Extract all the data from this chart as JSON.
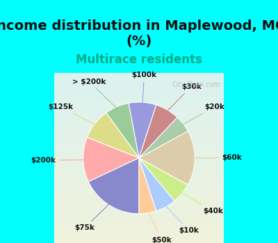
{
  "title": "Income distribution in Maplewood, MO\n(%)",
  "subtitle": "Multirace residents",
  "labels": [
    "$100k",
    "> $200k",
    "$125k",
    "$200k",
    "$75k",
    "$50k",
    "$10k",
    "$40k",
    "$60k",
    "$20k",
    "$30k"
  ],
  "sizes": [
    8,
    7,
    9,
    13,
    18,
    5,
    6,
    6,
    16,
    5,
    7
  ],
  "colors": [
    "#9999dd",
    "#99cc99",
    "#dddd88",
    "#ffaaaa",
    "#8888cc",
    "#ffcc99",
    "#aaccff",
    "#ccee88",
    "#ddccaa",
    "#aaccaa",
    "#cc8888"
  ],
  "title_fontsize": 14,
  "subtitle_fontsize": 12,
  "subtitle_color": "#00aa88",
  "title_color": "#111111",
  "bg_top": "#00ffff",
  "bg_chart": "#e8f5e8",
  "startangle": 72,
  "watermark": "City-Data.com"
}
